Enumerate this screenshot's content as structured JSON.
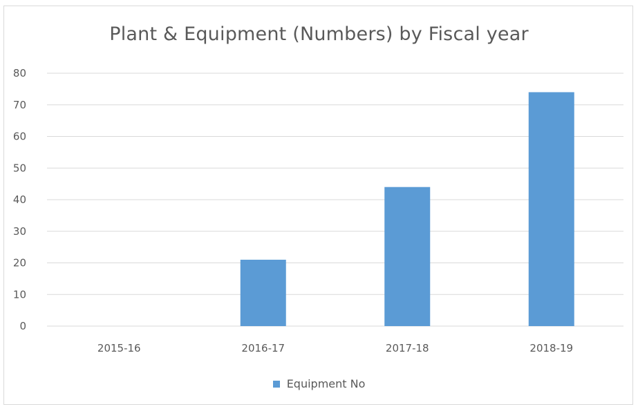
{
  "chart_data": {
    "type": "bar",
    "title": "Plant & Equipment (Numbers) by Fiscal year",
    "xlabel": "",
    "ylabel": "",
    "categories": [
      "2015-16",
      "2016-17",
      "2017-18",
      "2018-19"
    ],
    "series": [
      {
        "name": "Equipment No",
        "values": [
          0,
          21,
          44,
          74
        ],
        "color": "#5b9bd5"
      }
    ],
    "ylim": [
      0,
      80
    ],
    "yticks": [
      0,
      10,
      20,
      30,
      40,
      50,
      60,
      70,
      80
    ],
    "grid": true,
    "legend_position": "bottom"
  }
}
